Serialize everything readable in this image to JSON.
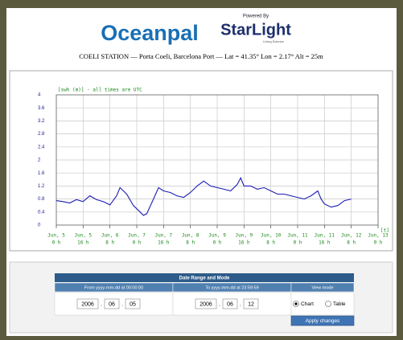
{
  "header": {
    "logo": "Oceanpal",
    "powered_by": "Powered By",
    "brand": "StarLight",
    "tagline": "Living Science",
    "station": "COELI STATION — Porta Coeli, Barcelona Port — Lat = 41.35° Lon = 2.17° Alt = 25m"
  },
  "chart_data": {
    "type": "line",
    "ylabel": "[swh (m)] - all times are UTC",
    "xlabel": "[t]",
    "color": "#1c1cb4",
    "grid": true,
    "x": [
      0,
      4,
      8,
      12,
      16,
      20,
      24,
      28,
      32,
      36,
      38,
      42,
      46,
      50,
      52,
      54,
      58,
      61,
      64,
      68,
      72,
      76,
      80,
      84,
      88,
      92,
      96,
      100,
      104,
      108,
      110,
      112,
      116,
      120,
      124,
      128,
      132,
      136,
      140,
      144,
      148,
      152,
      156,
      158,
      160,
      164,
      168,
      172,
      176
    ],
    "values": [
      0.75,
      0.72,
      0.68,
      0.78,
      0.72,
      0.9,
      0.78,
      0.72,
      0.62,
      0.9,
      1.15,
      0.95,
      0.6,
      0.4,
      0.3,
      0.35,
      0.8,
      1.15,
      1.05,
      1.0,
      0.9,
      0.85,
      1.0,
      1.2,
      1.35,
      1.2,
      1.15,
      1.1,
      1.05,
      1.25,
      1.45,
      1.2,
      1.2,
      1.1,
      1.15,
      1.05,
      0.95,
      0.95,
      0.9,
      0.85,
      0.8,
      0.9,
      1.05,
      0.8,
      0.65,
      0.55,
      0.6,
      0.75,
      0.8
    ],
    "xlim": [
      0,
      192
    ],
    "ylim": [
      0,
      4
    ],
    "yticks": [
      0,
      0.4,
      0.8,
      1.2,
      1.6,
      2,
      2.4,
      2.8,
      3.2,
      3.6,
      4
    ],
    "xticks": [
      {
        "value": 0,
        "label": "Jun, 5",
        "hour": "0 h"
      },
      {
        "value": 16,
        "label": "Jun, 5",
        "hour": "16 h"
      },
      {
        "value": 32,
        "label": "Jun, 6",
        "hour": "8 h"
      },
      {
        "value": 48,
        "label": "Jun, 7",
        "hour": "0 h"
      },
      {
        "value": 64,
        "label": "Jun, 7",
        "hour": "16 h"
      },
      {
        "value": 80,
        "label": "Jun, 8",
        "hour": "8 h"
      },
      {
        "value": 96,
        "label": "Jun, 9",
        "hour": "0 h"
      },
      {
        "value": 112,
        "label": "Jun, 9",
        "hour": "16 h"
      },
      {
        "value": 128,
        "label": "Jun, 10",
        "hour": "8 h"
      },
      {
        "value": 144,
        "label": "Jun, 11",
        "hour": "0 h"
      },
      {
        "value": 160,
        "label": "Jun, 11",
        "hour": "16 h"
      },
      {
        "value": 176,
        "label": "Jun, 12",
        "hour": "8 h"
      },
      {
        "value": 192,
        "label": "Jun, 13",
        "hour": "0 h"
      }
    ]
  },
  "form": {
    "title": "Date Range and Mode",
    "columns": [
      "From yyyy-mm-dd at 00:00:00",
      "To yyyy-mm-dd at 23:59:59",
      "View mode"
    ],
    "from": [
      "2006",
      "06",
      "05"
    ],
    "to": [
      "2006",
      "06",
      "12"
    ],
    "separator": ".",
    "modes": [
      "Chart",
      "Table"
    ],
    "selected": 0,
    "button": "Apply changes"
  }
}
